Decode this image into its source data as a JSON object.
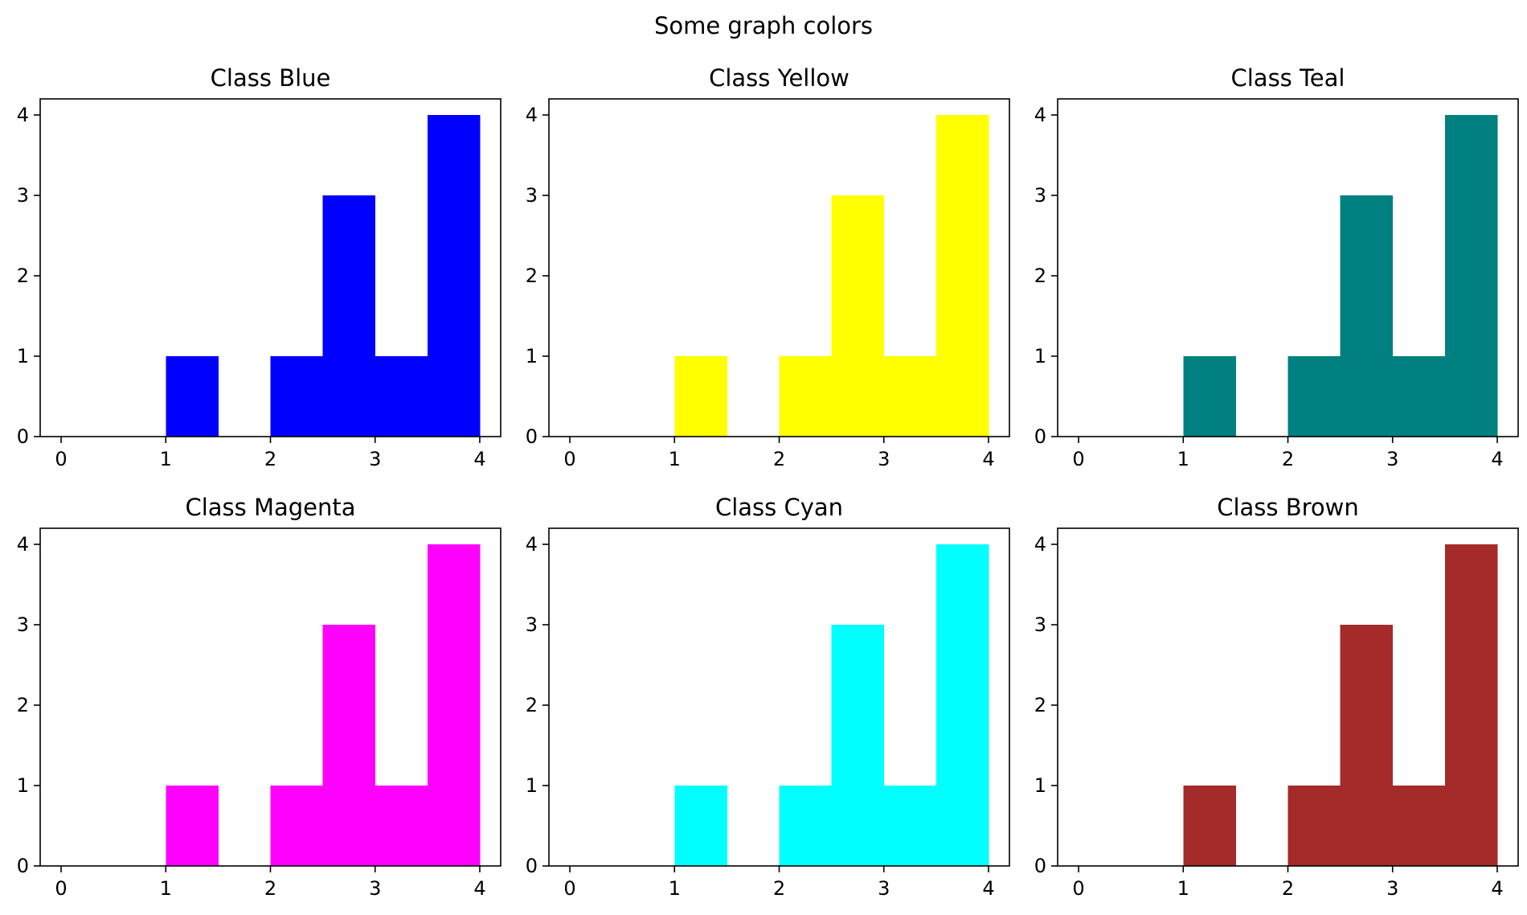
{
  "figure": {
    "suptitle": "Some graph colors"
  },
  "chart_data": [
    {
      "type": "bar",
      "title": "Class Blue",
      "color": "#0000ff",
      "bins": [
        [
          1,
          1.5,
          1
        ],
        [
          2,
          2.5,
          1
        ],
        [
          2.5,
          3,
          3
        ],
        [
          3,
          3.5,
          1
        ],
        [
          3.5,
          4,
          4
        ]
      ],
      "xticks": [
        "0",
        "1",
        "2",
        "3",
        "4"
      ],
      "yticks": [
        "0",
        "1",
        "2",
        "3",
        "4"
      ],
      "xlim": [
        -0.2,
        4.2
      ],
      "ylim": [
        0,
        4.2
      ],
      "xlabel": "",
      "ylabel": "",
      "grid": false
    },
    {
      "type": "bar",
      "title": "Class Yellow",
      "color": "#ffff00",
      "bins": [
        [
          1,
          1.5,
          1
        ],
        [
          2,
          2.5,
          1
        ],
        [
          2.5,
          3,
          3
        ],
        [
          3,
          3.5,
          1
        ],
        [
          3.5,
          4,
          4
        ]
      ],
      "xticks": [
        "0",
        "1",
        "2",
        "3",
        "4"
      ],
      "yticks": [
        "0",
        "1",
        "2",
        "3",
        "4"
      ],
      "xlim": [
        -0.2,
        4.2
      ],
      "ylim": [
        0,
        4.2
      ],
      "xlabel": "",
      "ylabel": "",
      "grid": false
    },
    {
      "type": "bar",
      "title": "Class Teal",
      "color": "#008080",
      "bins": [
        [
          1,
          1.5,
          1
        ],
        [
          2,
          2.5,
          1
        ],
        [
          2.5,
          3,
          3
        ],
        [
          3,
          3.5,
          1
        ],
        [
          3.5,
          4,
          4
        ]
      ],
      "xticks": [
        "0",
        "1",
        "2",
        "3",
        "4"
      ],
      "yticks": [
        "0",
        "1",
        "2",
        "3",
        "4"
      ],
      "xlim": [
        -0.2,
        4.2
      ],
      "ylim": [
        0,
        4.2
      ],
      "xlabel": "",
      "ylabel": "",
      "grid": false
    },
    {
      "type": "bar",
      "title": "Class Magenta",
      "color": "#ff00ff",
      "bins": [
        [
          1,
          1.5,
          1
        ],
        [
          2,
          2.5,
          1
        ],
        [
          2.5,
          3,
          3
        ],
        [
          3,
          3.5,
          1
        ],
        [
          3.5,
          4,
          4
        ]
      ],
      "xticks": [
        "0",
        "1",
        "2",
        "3",
        "4"
      ],
      "yticks": [
        "0",
        "1",
        "2",
        "3",
        "4"
      ],
      "xlim": [
        -0.2,
        4.2
      ],
      "ylim": [
        0,
        4.2
      ],
      "xlabel": "",
      "ylabel": "",
      "grid": false
    },
    {
      "type": "bar",
      "title": "Class Cyan",
      "color": "#00ffff",
      "bins": [
        [
          1,
          1.5,
          1
        ],
        [
          2,
          2.5,
          1
        ],
        [
          2.5,
          3,
          3
        ],
        [
          3,
          3.5,
          1
        ],
        [
          3.5,
          4,
          4
        ]
      ],
      "xticks": [
        "0",
        "1",
        "2",
        "3",
        "4"
      ],
      "yticks": [
        "0",
        "1",
        "2",
        "3",
        "4"
      ],
      "xlim": [
        -0.2,
        4.2
      ],
      "ylim": [
        0,
        4.2
      ],
      "xlabel": "",
      "ylabel": "",
      "grid": false
    },
    {
      "type": "bar",
      "title": "Class Brown",
      "color": "#a52a2a",
      "bins": [
        [
          1,
          1.5,
          1
        ],
        [
          2,
          2.5,
          1
        ],
        [
          2.5,
          3,
          3
        ],
        [
          3,
          3.5,
          1
        ],
        [
          3.5,
          4,
          4
        ]
      ],
      "xticks": [
        "0",
        "1",
        "2",
        "3",
        "4"
      ],
      "yticks": [
        "0",
        "1",
        "2",
        "3",
        "4"
      ],
      "xlim": [
        -0.2,
        4.2
      ],
      "ylim": [
        0,
        4.2
      ],
      "xlabel": "",
      "ylabel": "",
      "grid": false
    }
  ]
}
